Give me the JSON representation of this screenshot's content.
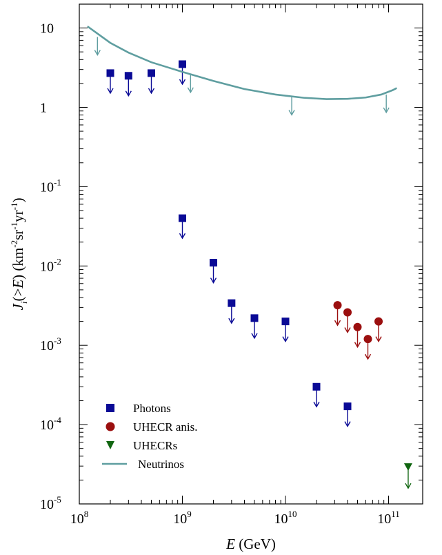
{
  "chart_data": {
    "type": "scatter",
    "x_scale": "log",
    "y_scale": "log",
    "xlim": [
      100000000,
      160000000000
    ],
    "ylim": [
      1e-05,
      20
    ],
    "xlabel": {
      "var": "E",
      "unit": "(GeV)"
    },
    "ylabel": {
      "var": "J",
      "sub": "i",
      "arg": "(>E)",
      "unit_parts": [
        "(km",
        "-2",
        "sr",
        "-1",
        "yr",
        "-1",
        ")"
      ]
    },
    "x_ticks": [
      {
        "value": 100000000,
        "base": "10",
        "exp": "8"
      },
      {
        "value": 1000000000,
        "base": "10",
        "exp": "9"
      },
      {
        "value": 10000000000,
        "base": "10",
        "exp": "10"
      },
      {
        "value": 100000000000,
        "base": "10",
        "exp": "11"
      }
    ],
    "y_ticks": [
      {
        "value": 10,
        "base": "10",
        "exp": ""
      },
      {
        "value": 1,
        "base": "1",
        "exp": ""
      },
      {
        "value": 0.1,
        "base": "10",
        "exp": "-1"
      },
      {
        "value": 0.01,
        "base": "10",
        "exp": "-2"
      },
      {
        "value": 0.001,
        "base": "10",
        "exp": "-3"
      },
      {
        "value": 0.0001,
        "base": "10",
        "exp": "-4"
      },
      {
        "value": 1e-05,
        "base": "10",
        "exp": "-5"
      }
    ],
    "legend_position": "bottom-left",
    "series": [
      {
        "name": "Photons",
        "marker": "square",
        "color": "#0a0a96",
        "upper_limit": true,
        "points": [
          {
            "x": 200000000,
            "y": 2.7
          },
          {
            "x": 300000000,
            "y": 2.5
          },
          {
            "x": 500000000,
            "y": 2.7
          },
          {
            "x": 1000000000,
            "y": 3.5
          },
          {
            "x": 1000000000,
            "y": 0.04
          },
          {
            "x": 2000000000,
            "y": 0.011
          },
          {
            "x": 3000000000,
            "y": 0.0034
          },
          {
            "x": 5000000000,
            "y": 0.0022
          },
          {
            "x": 10000000000,
            "y": 0.002
          },
          {
            "x": 20000000000,
            "y": 0.0003
          },
          {
            "x": 40000000000,
            "y": 0.00017
          }
        ]
      },
      {
        "name": "UHECR anis.",
        "marker": "circle",
        "color": "#9b0f0f",
        "upper_limit": true,
        "points": [
          {
            "x": 32000000000,
            "y": 0.0032
          },
          {
            "x": 40000000000,
            "y": 0.0026
          },
          {
            "x": 50000000000,
            "y": 0.0017
          },
          {
            "x": 63000000000,
            "y": 0.0012
          },
          {
            "x": 80000000000,
            "y": 0.002
          }
        ]
      },
      {
        "name": "UHECRs",
        "marker": "triangle-down",
        "color": "#116611",
        "upper_limit": true,
        "points": [
          {
            "x": 155000000000,
            "y": 3e-05
          }
        ]
      },
      {
        "name": "Neutrinos",
        "marker": "line",
        "color": "#5f9ea0",
        "upper_limit": true,
        "curve": [
          {
            "x": 120000000,
            "y": 10.5
          },
          {
            "x": 200000000,
            "y": 6.5
          },
          {
            "x": 300000000,
            "y": 4.9
          },
          {
            "x": 500000000,
            "y": 3.7
          },
          {
            "x": 1000000000,
            "y": 2.8
          },
          {
            "x": 2000000000,
            "y": 2.15
          },
          {
            "x": 4000000000,
            "y": 1.7
          },
          {
            "x": 8000000000,
            "y": 1.45
          },
          {
            "x": 15000000000,
            "y": 1.32
          },
          {
            "x": 25000000000,
            "y": 1.27
          },
          {
            "x": 40000000000,
            "y": 1.28
          },
          {
            "x": 60000000000,
            "y": 1.33
          },
          {
            "x": 85000000000,
            "y": 1.45
          },
          {
            "x": 110000000000,
            "y": 1.65
          },
          {
            "x": 120000000000,
            "y": 1.75
          }
        ],
        "limit_arrows": [
          {
            "x": 150000000,
            "y": 7.7
          },
          {
            "x": 1200000000,
            "y": 2.6
          },
          {
            "x": 11500000000,
            "y": 1.35
          },
          {
            "x": 95000000000,
            "y": 1.45
          }
        ]
      }
    ]
  }
}
